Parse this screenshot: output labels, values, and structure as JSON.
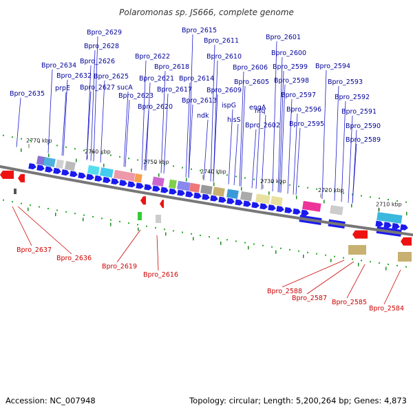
{
  "title": "Polaromonas sp. JS666, complete genome",
  "footer": {
    "accession": "Accession: NC_007948",
    "summary": "Topology: circular; Length: 5,200,264 bp; Genes: 4,873"
  },
  "scale_labels": [
    "2770 kbp",
    "2760 kbp",
    "2750 kbp",
    "2740 kbp",
    "2730 kbp",
    "2720 kbp",
    "2710 kbp"
  ],
  "top_labels": [
    "Bpro_2615",
    "Bpro_2629",
    "Bpro_2628",
    "Bpro_2611",
    "Bpro_2601",
    "Bpro_2600",
    "Bpro_2622",
    "Bpro_2610",
    "Bpro_2626",
    "Bpro_2618",
    "Bpro_2606",
    "Bpro_2599",
    "Bpro_2594",
    "Bpro_2634",
    "Bpro_2632",
    "Bpro_2625",
    "Bpro_2621",
    "Bpro_2614",
    "Bpro_2605",
    "Bpro_2598",
    "Bpro_2593",
    "prpE",
    "Bpro_2627",
    "sucA",
    "Bpro_2617",
    "Bpro_2609",
    "Bpro_2597",
    "Bpro_2635",
    "Bpro_2623",
    "Bpro_2613",
    "ispG",
    "Bpro_2592",
    "Bpro_2620",
    "engA",
    "hfq",
    "Bpro_2596",
    "Bpro_2591",
    "ndk",
    "hisS",
    "Bpro_2602",
    "Bpro_2595",
    "Bpro_2590",
    "Bpro_2589"
  ],
  "bottom_labels": [
    "Bpro_2637",
    "Bpro_2636",
    "Bpro_2619",
    "Bpro_2616",
    "Bpro_2588",
    "Bpro_2587",
    "Bpro_2585",
    "Bpro_2584"
  ]
}
